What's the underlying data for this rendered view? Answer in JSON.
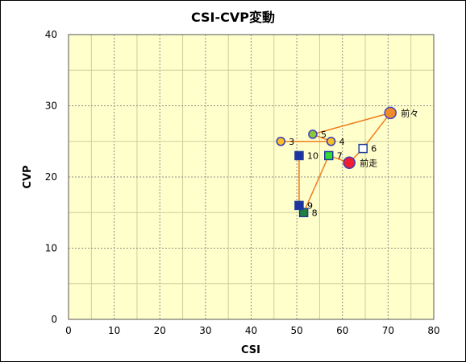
{
  "chart_data": {
    "type": "scatter",
    "title": "CSI-CVP変動",
    "xlabel": "CSI",
    "ylabel": "CVP",
    "xlim": [
      0,
      80
    ],
    "ylim": [
      0,
      40
    ],
    "x_ticks": [
      0,
      10,
      20,
      30,
      40,
      50,
      60,
      70,
      80
    ],
    "y_ticks": [
      0,
      10,
      20,
      30,
      40
    ],
    "grid": true,
    "colors": {
      "plot_background": "#ffffcc",
      "line": "#f07d1e",
      "grid_minor": "#cfcf9c",
      "grid_major": "#8c8c8c"
    },
    "path_order": [
      "3",
      "4",
      "5",
      "前々",
      "6",
      "前走",
      "7",
      "8",
      "9",
      "10"
    ],
    "points": [
      {
        "label": "3",
        "x": 46.5,
        "y": 25,
        "marker": "circle",
        "fill": "#f5c028",
        "stroke": "#3c3cb4"
      },
      {
        "label": "4",
        "x": 57.5,
        "y": 25,
        "marker": "circle",
        "fill": "#f5c028",
        "stroke": "#3c3cb4"
      },
      {
        "label": "5",
        "x": 53.5,
        "y": 26,
        "marker": "circle",
        "fill": "#8cc83c",
        "stroke": "#3c3cb4"
      },
      {
        "label": "前々",
        "x": 70.5,
        "y": 29,
        "marker": "big-circle",
        "fill": "#f08c28",
        "stroke": "#4646c8"
      },
      {
        "label": "6",
        "x": 64.5,
        "y": 24,
        "marker": "square",
        "fill": "#ffffff",
        "stroke": "#1e3c9b"
      },
      {
        "label": "前走",
        "x": 61.5,
        "y": 22,
        "marker": "big-circle",
        "fill": "#f01e32",
        "stroke": "#3c3cb4"
      },
      {
        "label": "7",
        "x": 57.0,
        "y": 23,
        "marker": "square",
        "fill": "#32dc32",
        "stroke": "#1e3c9b"
      },
      {
        "label": "8",
        "x": 51.5,
        "y": 15,
        "marker": "square",
        "fill": "#1e823c",
        "stroke": "#1e3c9b"
      },
      {
        "label": "9",
        "x": 50.5,
        "y": 16,
        "marker": "square",
        "fill": "#1e32a0",
        "stroke": "#1e3c9b"
      },
      {
        "label": "10",
        "x": 50.5,
        "y": 23,
        "marker": "square",
        "fill": "#1e32a0",
        "stroke": "#1e3c9b"
      }
    ]
  }
}
